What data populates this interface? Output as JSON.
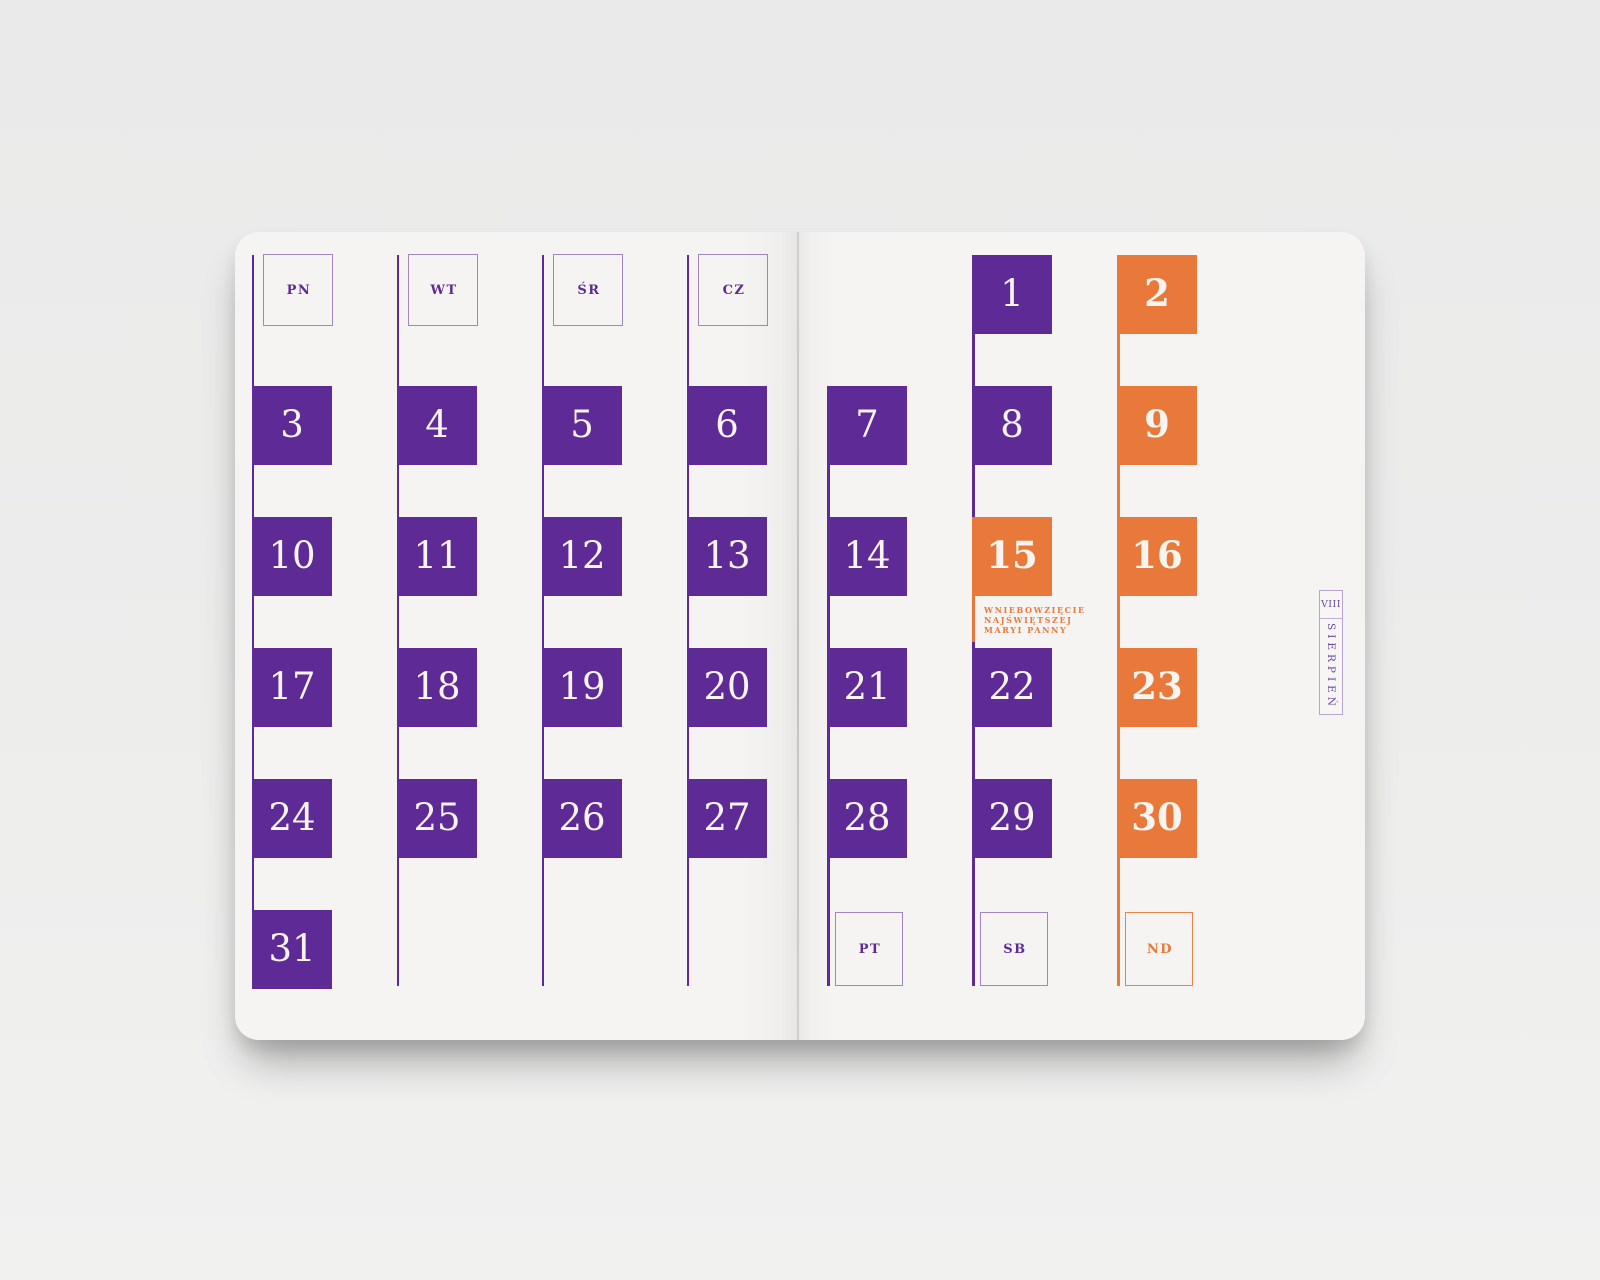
{
  "colors": {
    "purple": "#5e2b96",
    "orange": "#e8793b",
    "page": "#f4f3f1",
    "background": "#ececec",
    "number_white": "#f8f5f0"
  },
  "calendar": {
    "month_number_roman": "VIII",
    "month_name": "SIERPIEŃ",
    "holiday_note": [
      "WNIEBOWZIĘCIE",
      "NAJŚWIĘTSZEJ",
      "MARYI PANNY"
    ],
    "columns": [
      {
        "key": "pn",
        "label": "PN",
        "label_pos": "top",
        "accent": "purple",
        "line_top_row": 0,
        "cells": [
          {
            "day": "3",
            "row": 1
          },
          {
            "day": "10",
            "row": 2
          },
          {
            "day": "17",
            "row": 3
          },
          {
            "day": "24",
            "row": 4
          },
          {
            "day": "31",
            "row": 5
          }
        ]
      },
      {
        "key": "wt",
        "label": "WT",
        "label_pos": "top",
        "accent": "purple",
        "line_top_row": 0,
        "cells": [
          {
            "day": "4",
            "row": 1
          },
          {
            "day": "11",
            "row": 2
          },
          {
            "day": "18",
            "row": 3
          },
          {
            "day": "25",
            "row": 4
          }
        ]
      },
      {
        "key": "sr",
        "label": "ŚR",
        "label_pos": "top",
        "accent": "purple",
        "line_top_row": 0,
        "cells": [
          {
            "day": "5",
            "row": 1
          },
          {
            "day": "12",
            "row": 2
          },
          {
            "day": "19",
            "row": 3
          },
          {
            "day": "26",
            "row": 4
          }
        ]
      },
      {
        "key": "cz",
        "label": "CZ",
        "label_pos": "top",
        "accent": "purple",
        "line_top_row": 0,
        "cells": [
          {
            "day": "6",
            "row": 1
          },
          {
            "day": "13",
            "row": 2
          },
          {
            "day": "20",
            "row": 3
          },
          {
            "day": "27",
            "row": 4
          }
        ]
      },
      {
        "key": "pt",
        "label": "PT",
        "label_pos": "bottom",
        "accent": "purple",
        "line_top_row": 1,
        "cells": [
          {
            "day": "7",
            "row": 1
          },
          {
            "day": "14",
            "row": 2
          },
          {
            "day": "21",
            "row": 3
          },
          {
            "day": "28",
            "row": 4
          }
        ]
      },
      {
        "key": "sb",
        "label": "SB",
        "label_pos": "bottom",
        "accent": "purple",
        "line_top_row": 0,
        "cells": [
          {
            "day": "1",
            "row": 0
          },
          {
            "day": "8",
            "row": 1
          },
          {
            "day": "15",
            "row": 2,
            "variant": "orange",
            "holiday": true
          },
          {
            "day": "22",
            "row": 3
          },
          {
            "day": "29",
            "row": 4
          }
        ]
      },
      {
        "key": "nd",
        "label": "ND",
        "label_pos": "bottom",
        "accent": "orange",
        "line_top_row": 0,
        "cells": [
          {
            "day": "2",
            "row": 0,
            "variant": "orange"
          },
          {
            "day": "9",
            "row": 1,
            "variant": "orange"
          },
          {
            "day": "16",
            "row": 2,
            "variant": "orange"
          },
          {
            "day": "23",
            "row": 3,
            "variant": "orange"
          },
          {
            "day": "30",
            "row": 4,
            "variant": "orange"
          }
        ]
      }
    ]
  }
}
